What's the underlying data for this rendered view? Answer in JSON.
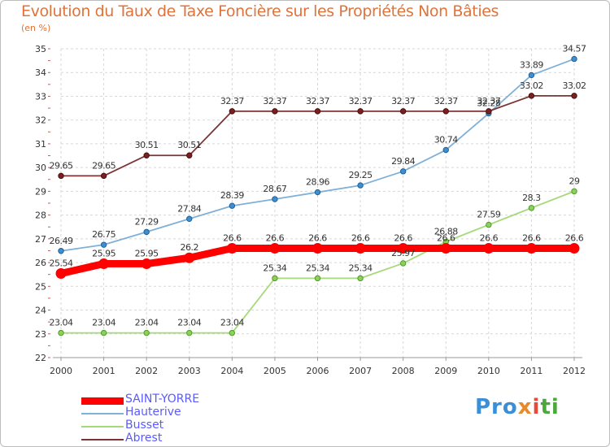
{
  "title": "Evolution du Taux de Taxe Foncière sur les Propriétés Non Bâties",
  "unit_label": "(en %)",
  "logo": {
    "p1": "Pro",
    "p2": "x",
    "p3": "i",
    "p4": "ti"
  },
  "colors": {
    "SAINT-YORRE": "#ff0000",
    "Hauterive": "#7fb0d8",
    "Busset": "#a6d97a",
    "Abrest": "#7b3535",
    "grid": "#d7d7d7",
    "title": "#e0733a",
    "legend_text": "#5a5aff"
  },
  "chart_data": {
    "type": "line",
    "x": [
      "2000",
      "2001",
      "2002",
      "2003",
      "2004",
      "2005",
      "2006",
      "2007",
      "2008",
      "2009",
      "2010",
      "2011",
      "2012"
    ],
    "ylim": [
      22,
      35
    ],
    "yticks": [
      22,
      23,
      24,
      25,
      26,
      27,
      28,
      29,
      30,
      31,
      32,
      33,
      34,
      35
    ],
    "grid": true,
    "legend_position": "bottom-left",
    "series": [
      {
        "name": "SAINT-YORRE",
        "values": [
          25.54,
          25.95,
          25.95,
          26.2,
          26.6,
          26.6,
          26.6,
          26.6,
          26.6,
          26.6,
          26.6,
          26.6,
          26.6
        ],
        "labels": [
          "25.54",
          "25.95",
          "25.95",
          "26.2",
          "26.6",
          "26.6",
          "26.6",
          "26.6",
          "26.6",
          "26.6",
          "26.6",
          "26.6",
          "26.6"
        ]
      },
      {
        "name": "Hauterive",
        "values": [
          26.49,
          26.75,
          27.29,
          27.84,
          28.39,
          28.67,
          28.96,
          29.25,
          29.84,
          30.74,
          32.28,
          33.89,
          34.57
        ],
        "labels": [
          "26.49",
          "26.75",
          "27.29",
          "27.84",
          "28.39",
          "28.67",
          "28.96",
          "29.25",
          "29.84",
          "30.74",
          "32.28",
          "33.89",
          "34.57"
        ]
      },
      {
        "name": "Busset",
        "values": [
          23.04,
          23.04,
          23.04,
          23.04,
          23.04,
          25.34,
          25.34,
          25.34,
          25.97,
          26.88,
          27.59,
          28.3,
          29
        ],
        "labels": [
          "23.04",
          "23.04",
          "23.04",
          "23.04",
          "23.04",
          "25.34",
          "25.34",
          "25.34",
          "25.97",
          "26.88",
          "27.59",
          "28.3",
          "29"
        ]
      },
      {
        "name": "Abrest",
        "values": [
          29.65,
          29.65,
          30.51,
          30.51,
          32.37,
          32.37,
          32.37,
          32.37,
          32.37,
          32.37,
          32.37,
          33.02,
          33.02
        ],
        "labels": [
          "29.65",
          "29.65",
          "30.51",
          "30.51",
          "32.37",
          "32.37",
          "32.37",
          "32.37",
          "32.37",
          "32.37",
          "32.37",
          "33.02",
          "33.02"
        ]
      }
    ]
  }
}
